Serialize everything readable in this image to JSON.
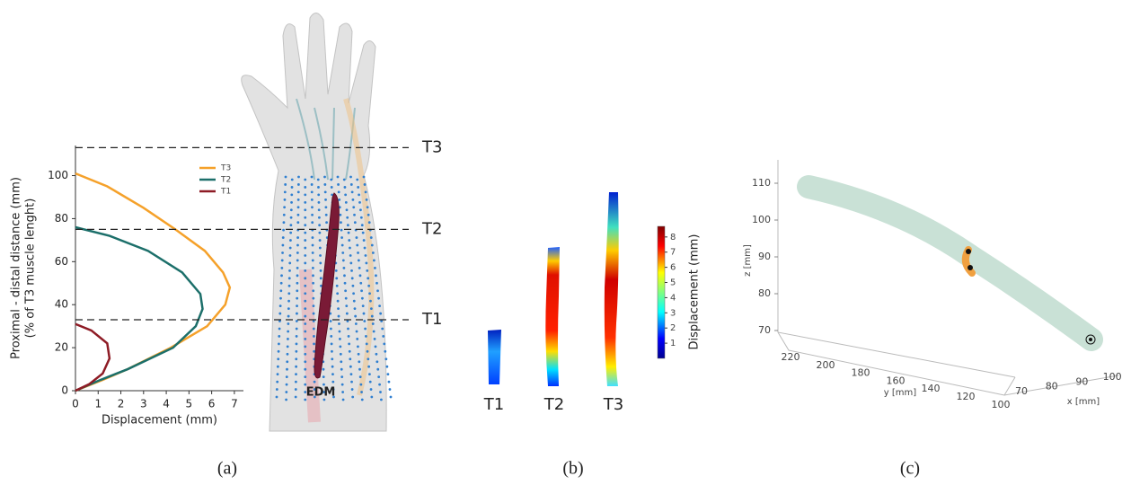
{
  "chart_data": {
    "type": "line",
    "xlabel": "Displacement (mm)",
    "ylabel": [
      "Proximal - distal distance (mm)",
      "(% of T3 muscle lenght)"
    ],
    "xlim": [
      0,
      7.4
    ],
    "xticks": [
      0,
      1,
      2,
      3,
      4,
      5,
      6,
      7
    ],
    "ylim": [
      0,
      114
    ],
    "yticks": [
      0,
      20,
      40,
      60,
      80,
      100
    ],
    "legend": "upper right",
    "series": [
      {
        "name": "T3",
        "color": "#f5a12a",
        "x": [
          0,
          1.4,
          3.0,
          4.4,
          5.7,
          6.5,
          6.8,
          6.6,
          5.8,
          4.2,
          2.3,
          1.2,
          0
        ],
        "values": [
          101,
          95,
          85,
          75,
          65,
          55,
          48,
          40,
          30,
          20,
          10,
          5,
          0
        ]
      },
      {
        "name": "T2",
        "color": "#1c6f6a",
        "x": [
          0,
          1.5,
          3.2,
          4.7,
          5.5,
          5.6,
          5.3,
          4.3,
          2.3,
          1.1,
          0
        ],
        "values": [
          76,
          72,
          65,
          55,
          45,
          38,
          30,
          20,
          10,
          5,
          0
        ]
      },
      {
        "name": "T1",
        "color": "#8e1b25",
        "x": [
          0,
          0.7,
          1.4,
          1.5,
          1.2,
          0.6,
          0
        ],
        "values": [
          31,
          28,
          22,
          15,
          8,
          3,
          0
        ]
      }
    ],
    "reference_lines": [
      {
        "label": "T3",
        "value": 113
      },
      {
        "label": "T2",
        "value": 75
      },
      {
        "label": "T1",
        "value": 33
      }
    ]
  },
  "forearm": {
    "label": "EDM"
  },
  "panel_b": {
    "shapes": [
      "T1",
      "T2",
      "T3"
    ],
    "colorbar_label": "Displacement (mm)",
    "colorbar_lim": [
      0,
      8.7
    ],
    "colorbar_ticks": [
      1,
      2,
      3,
      4,
      5,
      6,
      7,
      8
    ]
  },
  "panel_c": {
    "zlabel": "z [mm]",
    "zticks": [
      70,
      80,
      90,
      100,
      110
    ],
    "ylabel": "y [mm]",
    "yticks": [
      220,
      200,
      180,
      160,
      140,
      120,
      100
    ],
    "xlabel": "x [mm]",
    "xticks": [
      70,
      80,
      90,
      100
    ]
  },
  "captions": [
    "(a)",
    "(b)",
    "(c)"
  ]
}
